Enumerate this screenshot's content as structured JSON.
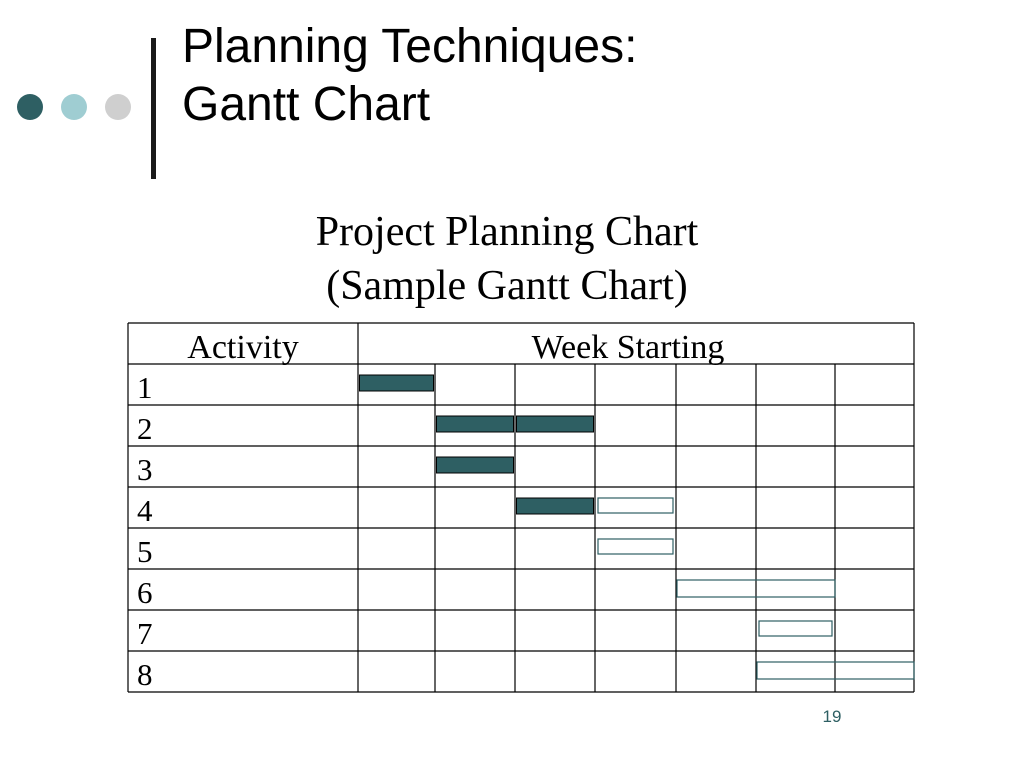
{
  "slide": {
    "title_line1": "Planning Techniques:",
    "title_line2": "Gantt Chart",
    "page_number": "19",
    "colors": {
      "accent_dark": "#2e5f63",
      "accent_light": "#9fcdd2",
      "accent_grey": "#cfcfcf"
    }
  },
  "chart_data": {
    "type": "table",
    "title_line1": "Project Planning Chart",
    "title_line2": "(Sample Gantt Chart)",
    "column_headers": [
      "Activity",
      "Week Starting"
    ],
    "activities": [
      "1",
      "2",
      "3",
      "4",
      "5",
      "6",
      "7",
      "8"
    ],
    "week_columns": 7,
    "bar_colors": {
      "completed": "#2e5f63",
      "planned_outline": "#2e5f63"
    },
    "tasks": [
      {
        "activity": "1",
        "start_week": 1,
        "end_week": 1,
        "status": "completed"
      },
      {
        "activity": "2",
        "start_week": 2,
        "end_week": 3,
        "status": "completed"
      },
      {
        "activity": "3",
        "start_week": 2,
        "end_week": 2,
        "status": "completed"
      },
      {
        "activity": "4",
        "start_week": 3,
        "end_week": 3,
        "status": "completed"
      },
      {
        "activity": "4",
        "start_week": 4,
        "end_week": 4,
        "status": "planned"
      },
      {
        "activity": "5",
        "start_week": 4,
        "end_week": 4,
        "status": "planned"
      },
      {
        "activity": "6",
        "start_week": 5,
        "end_week": 6,
        "status": "planned"
      },
      {
        "activity": "7",
        "start_week": 6,
        "end_week": 6,
        "status": "planned"
      },
      {
        "activity": "8",
        "start_week": 6,
        "end_week": 7,
        "status": "planned"
      }
    ]
  }
}
